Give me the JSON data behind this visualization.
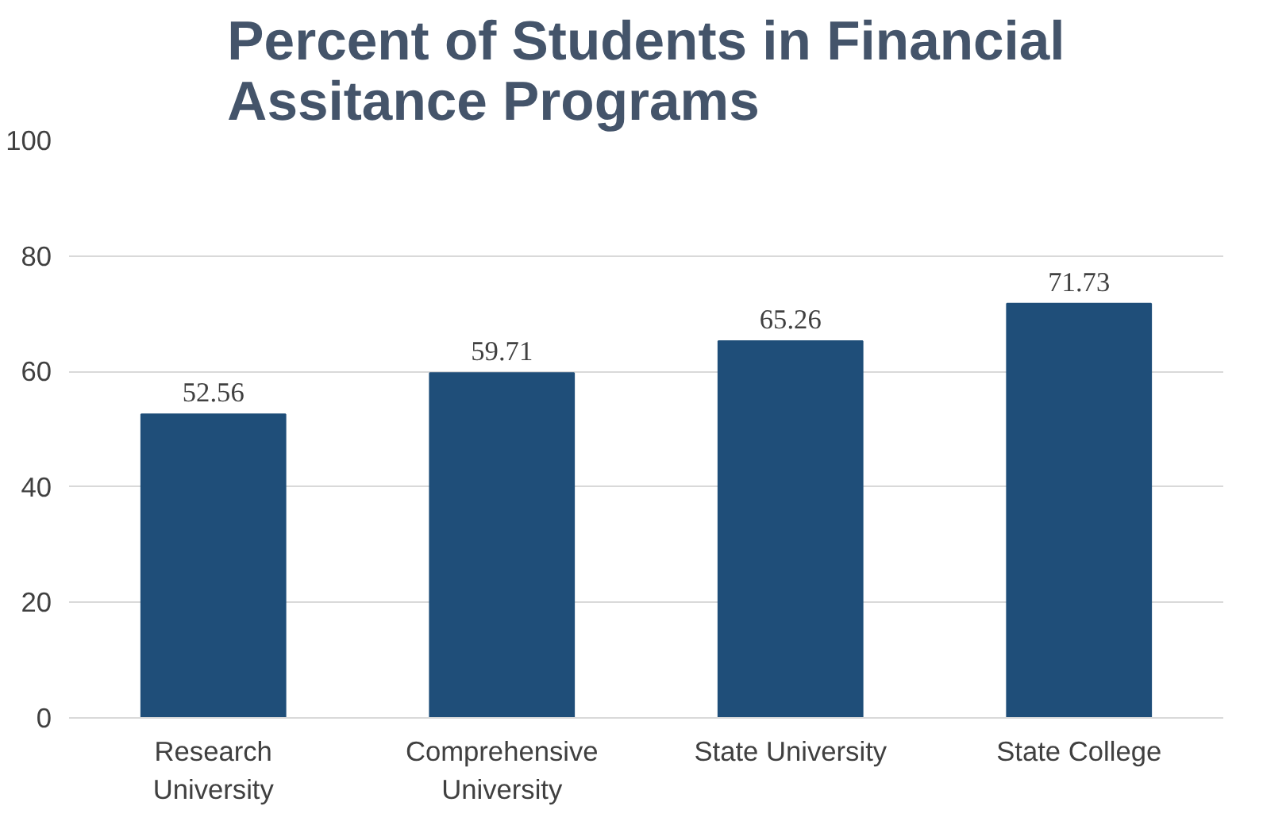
{
  "chart_data": {
    "type": "bar",
    "title": "Percent of Students in Financial Assitance Programs",
    "categories": [
      "Research University",
      "Comprehensive University",
      "State University",
      "State College"
    ],
    "values": [
      52.56,
      59.71,
      65.26,
      71.73
    ],
    "color": "#1f4e79",
    "ylim": [
      0,
      100
    ],
    "yticks": [
      0,
      20,
      40,
      60,
      80,
      100
    ],
    "grid": "y",
    "data_labels": true
  }
}
